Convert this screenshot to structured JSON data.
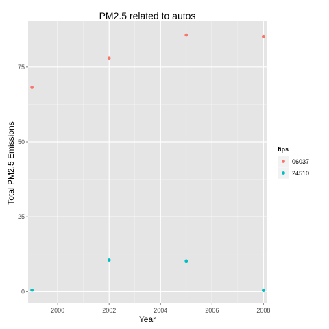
{
  "chart_data": {
    "type": "scatter",
    "title": "PM2.5 related to autos",
    "xlabel": "Year",
    "ylabel": "Total PM2.5 Emissions",
    "xlim": [
      1998.85,
      2008.15
    ],
    "ylim": [
      -3.8,
      90.3
    ],
    "xticks": [
      2000,
      2002,
      2004,
      2006,
      2008
    ],
    "xtick_labels": [
      "2000",
      "2002",
      "2004",
      "2006",
      "2008"
    ],
    "yticks": [
      0,
      25,
      50,
      75
    ],
    "ytick_labels": [
      "0",
      "25",
      "50",
      "75"
    ],
    "grid": true,
    "legend": {
      "title": "fips",
      "position": "right"
    },
    "series": [
      {
        "name": "06037",
        "color": "#f8766d",
        "points": [
          {
            "x": 1999,
            "y": 68.2
          },
          {
            "x": 2002,
            "y": 78.0
          },
          {
            "x": 2005,
            "y": 85.7
          },
          {
            "x": 2008,
            "y": 85.2
          }
        ]
      },
      {
        "name": "24510",
        "color": "#00bfc4",
        "points": [
          {
            "x": 1999,
            "y": 0.5
          },
          {
            "x": 2002,
            "y": 10.5
          },
          {
            "x": 2005,
            "y": 10.2
          },
          {
            "x": 2008,
            "y": 0.4
          }
        ]
      }
    ]
  },
  "colors": {
    "panel_background": "#e5e5e5",
    "grid_major": "#ffffff",
    "grid_minor": "#f2f2f2"
  }
}
